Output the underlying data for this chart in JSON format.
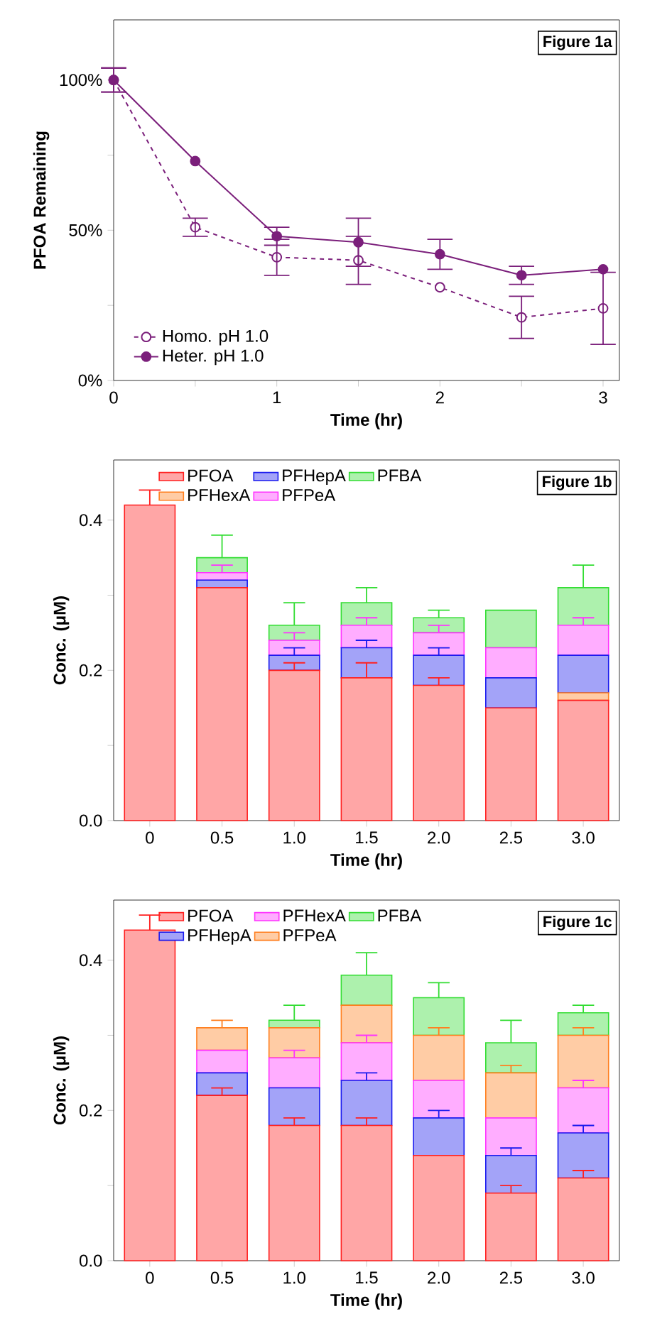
{
  "chart_data": [
    {
      "type": "line",
      "xlabel": "Time (hr)",
      "ylabel": "PFOA Remaining",
      "annotations": [
        "Figure 1a"
      ],
      "xlim": [
        0,
        3.1
      ],
      "xticks": [
        0,
        {
          "value": 0.5,
          "label": null
        },
        1,
        {
          "value": 1.5,
          "label": null
        },
        2,
        {
          "value": 2.5,
          "label": null
        },
        3
      ],
      "ylim": [
        0,
        120
      ],
      "yticks": [
        {
          "value": 0,
          "label": "0%"
        },
        {
          "value": 25,
          "label": null
        },
        {
          "value": 50,
          "label": "50%"
        },
        {
          "value": 75,
          "label": null
        },
        {
          "value": 100,
          "label": "100%"
        }
      ],
      "x": [
        0,
        0.5,
        1,
        1.5,
        2,
        2.5,
        3
      ],
      "legend": "bottom left",
      "grid": false,
      "series": [
        {
          "name": "Homo. pH 1.0",
          "color": "#7b1f7b",
          "line_style": "dashed",
          "marker": "circle",
          "values": [
            100,
            51,
            41,
            40,
            31,
            21,
            24
          ],
          "errors": [
            4,
            3,
            6,
            8,
            null,
            7,
            12
          ]
        },
        {
          "name": "Heter. pH 1.0",
          "color": "#7b1f7b",
          "line_style": "solid",
          "marker": "circle",
          "values": [
            100,
            73,
            48,
            46,
            42,
            35,
            37
          ],
          "errors": [
            4,
            null,
            3,
            8,
            5,
            3,
            null
          ]
        }
      ]
    },
    {
      "type": "bar",
      "stacked": true,
      "xlabel": "Time (hr)",
      "ylabel": "Conc. (μM)",
      "annotations": [
        "Figure 1b"
      ],
      "categories": [
        "0",
        "0.5",
        "1.0",
        "1.5",
        "2.0",
        "2.5",
        "3.0"
      ],
      "ylim": [
        0,
        0.48
      ],
      "yticks": [
        {
          "value": 0,
          "label": "0.0"
        },
        {
          "value": 0.1,
          "label": null
        },
        {
          "value": 0.2,
          "label": "0.2"
        },
        {
          "value": 0.3,
          "label": null
        },
        {
          "value": 0.4,
          "label": "0.4"
        }
      ],
      "legend": "top",
      "grid": false,
      "series": [
        {
          "name": "PFOA",
          "color": "#ff2020",
          "values": [
            0.42,
            0.31,
            0.2,
            0.19,
            0.18,
            0.15,
            0.16
          ],
          "errors": [
            0.02,
            null,
            0.01,
            0.02,
            0.01,
            null,
            null
          ]
        },
        {
          "name": "PFHexA",
          "color": "#ff7f1f",
          "values": [
            0,
            0,
            0,
            0,
            0,
            0,
            0.01
          ],
          "errors": [
            null,
            null,
            null,
            null,
            null,
            null,
            null
          ]
        },
        {
          "name": "PFHepA",
          "color": "#1a1aee",
          "values": [
            0,
            0.01,
            0.02,
            0.04,
            0.04,
            0.04,
            0.05
          ],
          "errors": [
            null,
            null,
            0.01,
            0.01,
            0.01,
            null,
            null
          ]
        },
        {
          "name": "PFPeA",
          "color": "#ff33ff",
          "values": [
            0,
            0.01,
            0.02,
            0.03,
            0.03,
            0.04,
            0.04
          ],
          "errors": [
            null,
            0.01,
            0.01,
            0.01,
            0.01,
            null,
            0.01
          ]
        },
        {
          "name": "PFBA",
          "color": "#33dd33",
          "values": [
            0,
            0.02,
            0.02,
            0.03,
            0.02,
            0.05,
            0.05
          ],
          "errors": [
            null,
            0.03,
            0.03,
            0.02,
            0.01,
            null,
            0.03
          ]
        }
      ]
    },
    {
      "type": "bar",
      "stacked": true,
      "xlabel": "Time (hr)",
      "ylabel": "Conc. (μM)",
      "annotations": [
        "Figure 1c"
      ],
      "categories": [
        "0",
        "0.5",
        "1.0",
        "1.5",
        "2.0",
        "2.5",
        "3.0"
      ],
      "ylim": [
        0,
        0.48
      ],
      "yticks": [
        {
          "value": 0,
          "label": "0.0"
        },
        {
          "value": 0.1,
          "label": null
        },
        {
          "value": 0.2,
          "label": "0.2"
        },
        {
          "value": 0.3,
          "label": null
        },
        {
          "value": 0.4,
          "label": "0.4"
        }
      ],
      "legend": "top",
      "grid": false,
      "series": [
        {
          "name": "PFOA",
          "color": "#ff2020",
          "values": [
            0.44,
            0.22,
            0.18,
            0.18,
            0.14,
            0.09,
            0.11
          ],
          "errors": [
            0.02,
            0.01,
            0.01,
            0.01,
            null,
            0.01,
            0.01
          ]
        },
        {
          "name": "PFHepA",
          "color": "#1a1aee",
          "values": [
            0,
            0.03,
            0.05,
            0.06,
            0.05,
            0.05,
            0.06
          ],
          "errors": [
            null,
            null,
            null,
            0.01,
            0.01,
            0.01,
            0.01
          ]
        },
        {
          "name": "PFHexA",
          "color": "#ff33ff",
          "values": [
            0,
            0.03,
            0.04,
            0.05,
            0.05,
            0.05,
            0.06
          ],
          "errors": [
            null,
            null,
            0.01,
            0.01,
            null,
            null,
            0.01
          ]
        },
        {
          "name": "PFPeA",
          "color": "#ff7f1f",
          "values": [
            0,
            0.03,
            0.04,
            0.05,
            0.06,
            0.06,
            0.07
          ],
          "errors": [
            null,
            0.01,
            null,
            null,
            0.01,
            0.01,
            0.01
          ]
        },
        {
          "name": "PFBA",
          "color": "#33dd33",
          "values": [
            0,
            0,
            0.01,
            0.04,
            0.05,
            0.04,
            0.03
          ],
          "errors": [
            null,
            null,
            0.02,
            0.03,
            0.02,
            0.03,
            0.01
          ]
        }
      ]
    }
  ]
}
